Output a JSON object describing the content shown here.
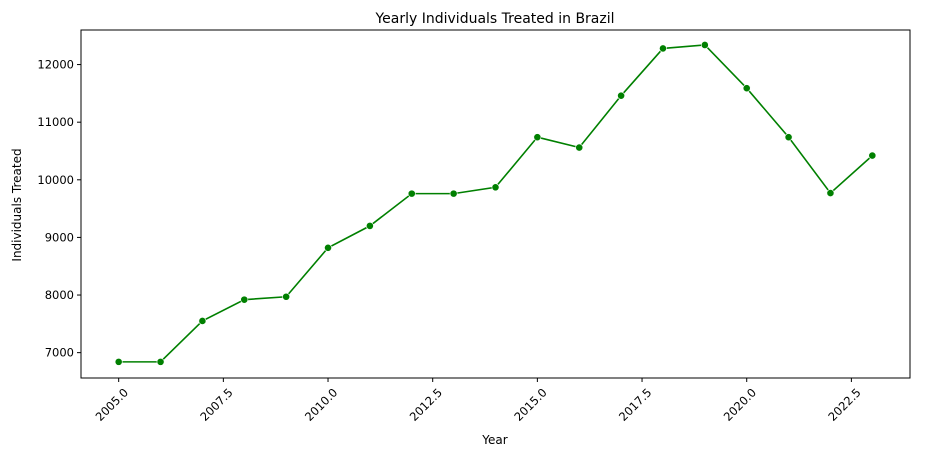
{
  "chart_data": {
    "type": "line",
    "title": "Yearly Individuals Treated in Brazil",
    "xlabel": "Year",
    "ylabel": "Individuals Treated",
    "x": [
      2005,
      2006,
      2007,
      2008,
      2009,
      2010,
      2011,
      2012,
      2013,
      2014,
      2015,
      2016,
      2017,
      2018,
      2019,
      2020,
      2021,
      2022,
      2023
    ],
    "series": [
      {
        "values": [
          6840,
          6840,
          7550,
          7920,
          7970,
          8820,
          9200,
          9760,
          9760,
          9870,
          10740,
          10560,
          11460,
          12280,
          12340,
          11590,
          10740,
          9770,
          10420
        ],
        "color": "#008000",
        "marker": "circle"
      }
    ],
    "xlim": [
      2004.1,
      2023.9
    ],
    "ylim": [
      6560,
      12600
    ],
    "xticks": [
      "2005.0",
      "2007.5",
      "2010.0",
      "2012.5",
      "2015.0",
      "2017.5",
      "2020.0",
      "2022.5"
    ],
    "xtick_values": [
      2005,
      2007.5,
      2010,
      2012.5,
      2015,
      2017.5,
      2020,
      2022.5
    ],
    "yticks": [
      "7000",
      "8000",
      "9000",
      "10000",
      "11000",
      "12000"
    ],
    "ytick_values": [
      7000,
      8000,
      9000,
      10000,
      11000,
      12000
    ],
    "grid": false,
    "x_tick_rotation_deg": 45
  }
}
